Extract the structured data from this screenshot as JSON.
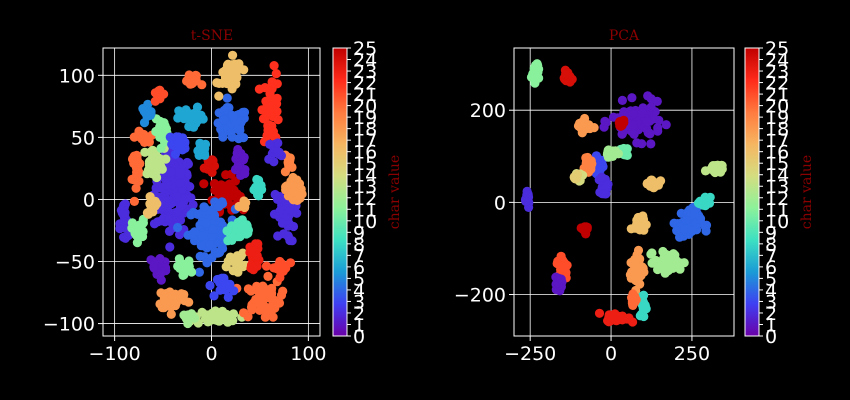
{
  "colors": {
    "background": "#000000",
    "axis": "#ffffff",
    "grid": "#ffffff",
    "title": "#8b0000",
    "colormap_stops": [
      "#6a00a8",
      "#3f3ff2",
      "#1a9bd6",
      "#3de0c2",
      "#8cf29a",
      "#d4dd80",
      "#f6b560",
      "#ff7a3e",
      "#ff2a1a",
      "#c00000"
    ]
  },
  "chart_data": [
    {
      "type": "scatter",
      "title": "t-SNE",
      "xlabel": "",
      "ylabel": "",
      "xlim": [
        -112,
        112
      ],
      "ylim": [
        -110,
        122
      ],
      "xticks": [
        -100,
        0,
        100
      ],
      "yticks": [
        -100,
        -50,
        0,
        50,
        100
      ],
      "xtick_labels": [
        "−100",
        "0",
        "100"
      ],
      "ytick_labels": [
        "−100",
        "−50",
        "0",
        "50",
        "100"
      ],
      "grid": true,
      "colorbar": {
        "label": "char value",
        "range": [
          0,
          25
        ],
        "ticks": [
          "0",
          "1",
          "2",
          "3",
          "4",
          "5",
          "6",
          "7",
          "8",
          "9",
          "10",
          "11",
          "12",
          "13",
          "14",
          "15",
          "16",
          "17",
          "18",
          "19",
          "20",
          "21",
          "22",
          "23",
          "24",
          "25"
        ]
      },
      "clusters": [
        {
          "value": 2,
          "cx": -40,
          "cy": 5,
          "rx": 18,
          "ry": 30,
          "n": 140
        },
        {
          "value": 25,
          "cx": 15,
          "cy": 5,
          "rx": 12,
          "ry": 12,
          "n": 70
        },
        {
          "value": 24,
          "cx": -3,
          "cy": 28,
          "rx": 4,
          "ry": 7,
          "n": 18
        },
        {
          "value": 4,
          "cx": 0,
          "cy": -25,
          "rx": 22,
          "ry": 18,
          "n": 90
        },
        {
          "value": 9,
          "cx": 30,
          "cy": -25,
          "rx": 12,
          "ry": 8,
          "n": 45
        },
        {
          "value": 4,
          "cx": 20,
          "cy": 60,
          "rx": 16,
          "ry": 12,
          "n": 55
        },
        {
          "value": 16,
          "cx": 20,
          "cy": 100,
          "rx": 10,
          "ry": 12,
          "n": 40
        },
        {
          "value": 22,
          "cx": 62,
          "cy": 75,
          "rx": 8,
          "ry": 25,
          "n": 45
        },
        {
          "value": 20,
          "cx": -78,
          "cy": 25,
          "rx": 5,
          "ry": 12,
          "n": 22
        },
        {
          "value": 20,
          "cx": -72,
          "cy": 50,
          "rx": 6,
          "ry": 4,
          "n": 15
        },
        {
          "value": 13,
          "cx": -60,
          "cy": 30,
          "rx": 10,
          "ry": 10,
          "n": 35
        },
        {
          "value": 2,
          "cx": -90,
          "cy": -20,
          "rx": 4,
          "ry": 18,
          "n": 25
        },
        {
          "value": 1,
          "cx": -55,
          "cy": -55,
          "rx": 8,
          "ry": 10,
          "n": 30
        },
        {
          "value": 18,
          "cx": -40,
          "cy": -80,
          "rx": 14,
          "ry": 8,
          "n": 40
        },
        {
          "value": 13,
          "cx": 5,
          "cy": -95,
          "rx": 20,
          "ry": 5,
          "n": 40
        },
        {
          "value": 20,
          "cx": 52,
          "cy": -80,
          "rx": 18,
          "ry": 14,
          "n": 55
        },
        {
          "value": 2,
          "cx": 75,
          "cy": -15,
          "rx": 10,
          "ry": 18,
          "n": 35
        },
        {
          "value": 18,
          "cx": 85,
          "cy": 8,
          "rx": 8,
          "ry": 10,
          "n": 25
        },
        {
          "value": 11,
          "cx": -75,
          "cy": -25,
          "rx": 6,
          "ry": 8,
          "n": 20
        },
        {
          "value": 6,
          "cx": -20,
          "cy": 65,
          "rx": 12,
          "ry": 8,
          "n": 30
        },
        {
          "value": 20,
          "cx": -20,
          "cy": 95,
          "rx": 8,
          "ry": 5,
          "n": 18
        },
        {
          "value": 1,
          "cx": 30,
          "cy": 30,
          "rx": 6,
          "ry": 12,
          "n": 25
        },
        {
          "value": 15,
          "cx": 25,
          "cy": -50,
          "rx": 8,
          "ry": 6,
          "n": 20
        },
        {
          "value": 23,
          "cx": 45,
          "cy": -45,
          "rx": 5,
          "ry": 10,
          "n": 20
        },
        {
          "value": 11,
          "cx": -30,
          "cy": -55,
          "rx": 8,
          "ry": 6,
          "n": 20
        },
        {
          "value": 21,
          "cx": 70,
          "cy": -55,
          "rx": 8,
          "ry": 6,
          "n": 18
        },
        {
          "value": 11,
          "cx": -50,
          "cy": 55,
          "rx": 8,
          "ry": 8,
          "n": 20
        },
        {
          "value": 3,
          "cx": -35,
          "cy": 45,
          "rx": 8,
          "ry": 6,
          "n": 20
        },
        {
          "value": 8,
          "cx": 50,
          "cy": 10,
          "rx": 5,
          "ry": 8,
          "n": 16
        },
        {
          "value": 19,
          "cx": 80,
          "cy": 30,
          "rx": 5,
          "ry": 5,
          "n": 12
        },
        {
          "value": 3,
          "cx": 15,
          "cy": -70,
          "rx": 8,
          "ry": 8,
          "n": 18
        },
        {
          "value": 2,
          "cx": 65,
          "cy": 40,
          "rx": 5,
          "ry": 8,
          "n": 15
        },
        {
          "value": 16,
          "cx": -62,
          "cy": -5,
          "rx": 6,
          "ry": 6,
          "n": 14
        },
        {
          "value": 6,
          "cx": -10,
          "cy": 40,
          "rx": 6,
          "ry": 5,
          "n": 14
        },
        {
          "value": 5,
          "cx": -65,
          "cy": 70,
          "rx": 6,
          "ry": 5,
          "n": 12
        },
        {
          "value": 21,
          "cx": -55,
          "cy": 85,
          "rx": 5,
          "ry": 5,
          "n": 10
        },
        {
          "value": 17,
          "cx": 35,
          "cy": -5,
          "rx": 5,
          "ry": 5,
          "n": 10
        },
        {
          "value": 12,
          "cx": -25,
          "cy": -95,
          "rx": 5,
          "ry": 4,
          "n": 10
        }
      ]
    },
    {
      "type": "scatter",
      "title": "PCA",
      "xlabel": "",
      "ylabel": "",
      "xlim": [
        -300,
        380
      ],
      "ylim": [
        -290,
        335
      ],
      "xticks": [
        -250,
        0,
        250
      ],
      "yticks": [
        -200,
        0,
        200
      ],
      "xtick_labels": [
        "−250",
        "0",
        "250"
      ],
      "ytick_labels": [
        "−200",
        "0",
        "200"
      ],
      "grid": true,
      "colorbar": {
        "label": "char value",
        "range": [
          0,
          25
        ],
        "ticks": [
          "0",
          "1",
          "2",
          "3",
          "4",
          "5",
          "6",
          "7",
          "8",
          "9",
          "10",
          "11",
          "12",
          "13",
          "14",
          "15",
          "16",
          "17",
          "18",
          "19",
          "20",
          "21",
          "22",
          "23",
          "24",
          "25"
        ]
      },
      "clusters": [
        {
          "value": 11,
          "cx": -235,
          "cy": 285,
          "rx": 10,
          "ry": 20,
          "n": 25
        },
        {
          "value": 24,
          "cx": -135,
          "cy": 272,
          "rx": 10,
          "ry": 12,
          "n": 20
        },
        {
          "value": 1,
          "cx": 80,
          "cy": 175,
          "rx": 70,
          "ry": 35,
          "n": 90
        },
        {
          "value": 25,
          "cx": 30,
          "cy": 168,
          "rx": 10,
          "ry": 10,
          "n": 12
        },
        {
          "value": 18,
          "cx": -85,
          "cy": 165,
          "rx": 20,
          "ry": 12,
          "n": 25
        },
        {
          "value": 3,
          "cx": -40,
          "cy": 80,
          "rx": 12,
          "ry": 25,
          "n": 30
        },
        {
          "value": 19,
          "cx": -70,
          "cy": 80,
          "rx": 10,
          "ry": 12,
          "n": 20
        },
        {
          "value": 14,
          "cx": -100,
          "cy": 55,
          "rx": 10,
          "ry": 8,
          "n": 15
        },
        {
          "value": 2,
          "cx": -20,
          "cy": 35,
          "rx": 10,
          "ry": 20,
          "n": 25
        },
        {
          "value": 10,
          "cx": 40,
          "cy": 110,
          "rx": 10,
          "ry": 8,
          "n": 15
        },
        {
          "value": 16,
          "cx": 130,
          "cy": 40,
          "rx": 20,
          "ry": 10,
          "n": 25
        },
        {
          "value": 13,
          "cx": 320,
          "cy": 75,
          "rx": 20,
          "ry": 8,
          "n": 25
        },
        {
          "value": 4,
          "cx": 240,
          "cy": -45,
          "rx": 35,
          "ry": 30,
          "n": 60
        },
        {
          "value": 8,
          "cx": 290,
          "cy": 0,
          "rx": 15,
          "ry": 10,
          "n": 20
        },
        {
          "value": 12,
          "cx": 180,
          "cy": -130,
          "rx": 40,
          "ry": 20,
          "n": 50
        },
        {
          "value": 16,
          "cx": 90,
          "cy": -45,
          "rx": 15,
          "ry": 15,
          "n": 20
        },
        {
          "value": 18,
          "cx": 80,
          "cy": -145,
          "rx": 20,
          "ry": 35,
          "n": 40
        },
        {
          "value": 25,
          "cx": -75,
          "cy": -58,
          "rx": 12,
          "ry": 8,
          "n": 15
        },
        {
          "value": 2,
          "cx": -260,
          "cy": 10,
          "rx": 8,
          "ry": 20,
          "n": 20
        },
        {
          "value": 21,
          "cx": -150,
          "cy": -140,
          "rx": 15,
          "ry": 25,
          "n": 35
        },
        {
          "value": 1,
          "cx": -160,
          "cy": -175,
          "rx": 10,
          "ry": 12,
          "n": 20
        },
        {
          "value": 23,
          "cx": 20,
          "cy": -250,
          "rx": 30,
          "ry": 8,
          "n": 35
        },
        {
          "value": 8,
          "cx": 100,
          "cy": -225,
          "rx": 10,
          "ry": 25,
          "n": 20
        },
        {
          "value": 20,
          "cx": 70,
          "cy": -210,
          "rx": 8,
          "ry": 15,
          "n": 15
        },
        {
          "value": 12,
          "cx": 0,
          "cy": 110,
          "rx": 15,
          "ry": 10,
          "n": 15
        },
        {
          "value": 15,
          "cx": -110,
          "cy": 55,
          "rx": 5,
          "ry": 10,
          "n": 10
        }
      ]
    }
  ]
}
